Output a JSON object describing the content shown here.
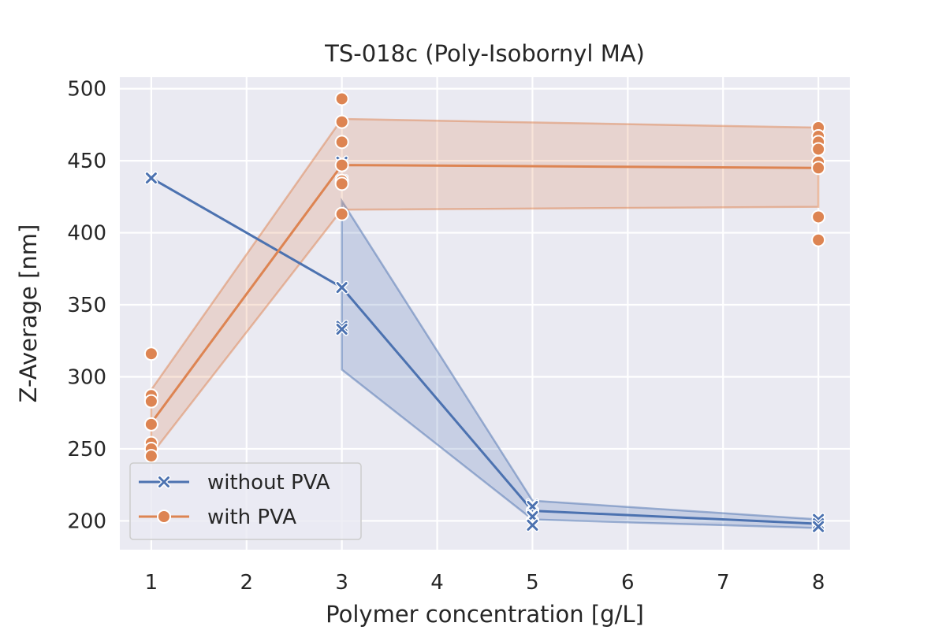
{
  "chart_data": {
    "type": "line",
    "title": "TS-018c (Poly-Isobornyl MA)",
    "xlabel": "Polymer concentration [g/L]",
    "ylabel": "Z-Average [nm]",
    "xlim": [
      0.67,
      8.33
    ],
    "ylim": [
      180,
      508
    ],
    "xticks": [
      1,
      2,
      3,
      4,
      5,
      6,
      7,
      8
    ],
    "yticks": [
      200,
      250,
      300,
      350,
      400,
      450,
      500
    ],
    "grid": true,
    "legend_position": "lower-left",
    "series": [
      {
        "name": "without PVA",
        "color": "#4c72b0",
        "marker": "x",
        "mean": {
          "x": [
            1,
            3,
            5,
            8
          ],
          "y": [
            438,
            362,
            207,
            198
          ]
        },
        "band": {
          "x": [
            3,
            5,
            8
          ],
          "lower": [
            305,
            201,
            195
          ],
          "upper": [
            422,
            214,
            201
          ]
        },
        "points": [
          {
            "x": 1,
            "y": 438
          },
          {
            "x": 3,
            "y": 449
          },
          {
            "x": 3,
            "y": 436
          },
          {
            "x": 3,
            "y": 362
          },
          {
            "x": 3,
            "y": 335
          },
          {
            "x": 3,
            "y": 333
          },
          {
            "x": 5,
            "y": 211
          },
          {
            "x": 5,
            "y": 210
          },
          {
            "x": 5,
            "y": 204
          },
          {
            "x": 5,
            "y": 203
          },
          {
            "x": 5,
            "y": 197
          },
          {
            "x": 8,
            "y": 201
          },
          {
            "x": 8,
            "y": 198
          },
          {
            "x": 8,
            "y": 196
          }
        ]
      },
      {
        "name": "with PVA",
        "color": "#dd8452",
        "marker": "o",
        "mean": {
          "x": [
            1,
            3,
            8
          ],
          "y": [
            268,
            447,
            445
          ]
        },
        "band": {
          "x": [
            1,
            3,
            8
          ],
          "lower": [
            246,
            416,
            418
          ],
          "upper": [
            291,
            479,
            473
          ]
        },
        "points": [
          {
            "x": 1,
            "y": 316
          },
          {
            "x": 1,
            "y": 287
          },
          {
            "x": 1,
            "y": 283
          },
          {
            "x": 1,
            "y": 267
          },
          {
            "x": 1,
            "y": 254
          },
          {
            "x": 1,
            "y": 250
          },
          {
            "x": 1,
            "y": 245
          },
          {
            "x": 3,
            "y": 493
          },
          {
            "x": 3,
            "y": 477
          },
          {
            "x": 3,
            "y": 463
          },
          {
            "x": 3,
            "y": 447
          },
          {
            "x": 3,
            "y": 436
          },
          {
            "x": 3,
            "y": 434
          },
          {
            "x": 3,
            "y": 413
          },
          {
            "x": 8,
            "y": 473
          },
          {
            "x": 8,
            "y": 467
          },
          {
            "x": 8,
            "y": 463
          },
          {
            "x": 8,
            "y": 458
          },
          {
            "x": 8,
            "y": 449
          },
          {
            "x": 8,
            "y": 445
          },
          {
            "x": 8,
            "y": 411
          },
          {
            "x": 8,
            "y": 395
          }
        ]
      }
    ]
  }
}
